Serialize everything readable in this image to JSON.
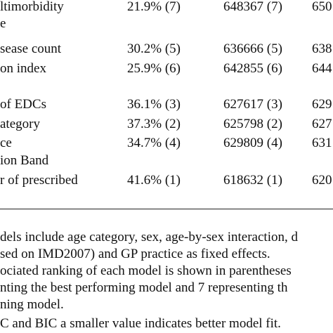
{
  "table": {
    "rows": [
      {
        "label": "ltimorbidity",
        "pct": "21.9% (7)",
        "aic": "648367 (7)",
        "bic": "650"
      },
      {
        "label": "e",
        "pct": "",
        "aic": "",
        "bic": ""
      },
      {
        "label": "sease count",
        "pct": "30.2% (5)",
        "aic": "636666 (5)",
        "bic": "638"
      },
      {
        "label": "on index",
        "pct": "25.9% (6)",
        "aic": "642855 (6)",
        "bic": "644"
      },
      {
        "label": "of EDCs",
        "pct": "36.1% (3)",
        "aic": "627617 (3)",
        "bic": "629"
      },
      {
        "label": "ategory",
        "pct": "37.3% (2)",
        "aic": "625798 (2)",
        "bic": "627"
      },
      {
        "label": "ce",
        "pct": "34.7% (4)",
        "aic": "629809 (4)",
        "bic": "631"
      },
      {
        "label": "ion Band",
        "pct": "",
        "aic": "",
        "bic": ""
      },
      {
        "label": "r of prescribed",
        "pct": "41.6% (1)",
        "aic": "618632 (1)",
        "bic": "620"
      }
    ]
  },
  "footnotes": [
    "dels include age category, sex, age-by-sex interaction, d",
    "sed on IMD2007) and GP practice as fixed effects.",
    "ociated ranking of each model is shown in parentheses",
    "nting the best performing model and 7 representing th",
    "ning model.",
    "C and BIC a smaller value indicates better model fit."
  ]
}
